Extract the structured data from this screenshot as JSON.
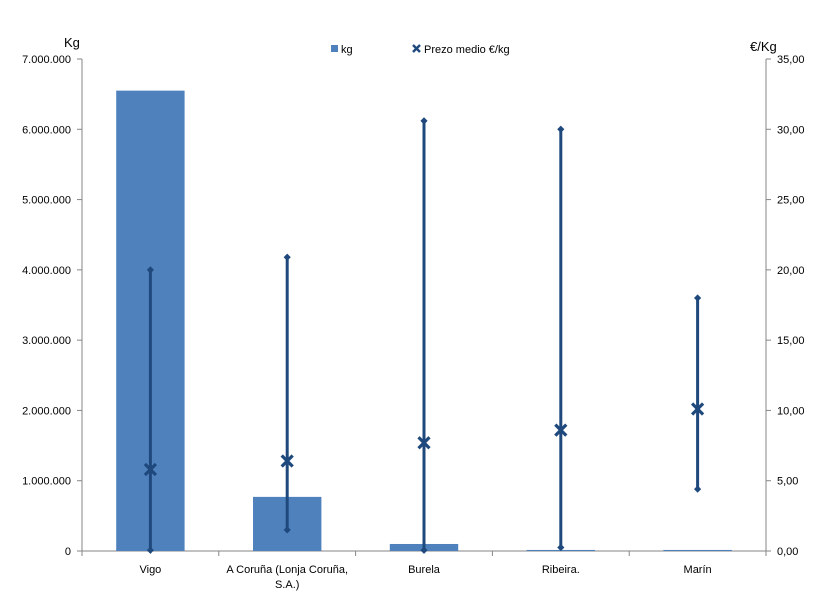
{
  "chart_data": {
    "type": "bar",
    "categories": [
      "Vigo",
      "A Coruña (Lonja Coruña, S.A.)",
      "Burela",
      "Ribeira.",
      "Marín"
    ],
    "category_label_lines": [
      [
        "Vigo"
      ],
      [
        "A Coruña (Lonja Coruña,",
        "S.A.)"
      ],
      [
        "Burela"
      ],
      [
        "Ribeira."
      ],
      [
        "Marín"
      ]
    ],
    "series": [
      {
        "name": "kg",
        "type": "bar",
        "axis": "left",
        "color": "#4F81BD",
        "values": [
          6550000,
          770000,
          100000,
          15000,
          15000
        ]
      },
      {
        "name": "Prezo medio €/kg",
        "type": "high-low-avg",
        "axis": "right",
        "color": "#1F497D",
        "avg": [
          5.8,
          6.4,
          7.7,
          8.6,
          10.1
        ],
        "high": [
          20.0,
          20.9,
          30.6,
          30.0,
          18.0
        ],
        "low": [
          0.05,
          1.5,
          0.05,
          0.25,
          4.4
        ]
      }
    ],
    "ylabel_left": "Kg",
    "ylabel_right": "€/Kg",
    "ylim_left": [
      0,
      7000000
    ],
    "ylim_right": [
      0,
      35
    ],
    "yticks_left": [
      "0",
      "1.000.000",
      "2.000.000",
      "3.000.000",
      "4.000.000",
      "5.000.000",
      "6.000.000",
      "7.000.000"
    ],
    "yticks_right": [
      "0,00",
      "5,00",
      "10,00",
      "15,00",
      "20,00",
      "25,00",
      "30,00",
      "35,00"
    ],
    "legend": [
      {
        "label": "kg",
        "marker": "square"
      },
      {
        "label": "Prezo medio €/kg",
        "marker": "x"
      }
    ],
    "legend_position": "top-center",
    "grid": false
  }
}
